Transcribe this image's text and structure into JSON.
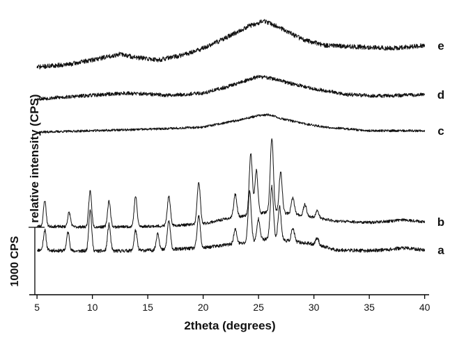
{
  "chart_data": {
    "type": "line",
    "xlabel": "2theta (degrees)",
    "ylabel": "relative intensity (CPS)",
    "scale_bar_label": "1000 CPS",
    "xlim": [
      4.3,
      40.4
    ],
    "xticks": [
      5,
      10,
      15,
      20,
      25,
      30,
      35,
      40
    ],
    "x_tick_labels": [
      "5",
      "10",
      "15",
      "20",
      "25",
      "30",
      "35",
      "40"
    ],
    "grid": false,
    "colors": {
      "line": "#111111",
      "axis": "#000000"
    },
    "series": [
      {
        "name": "a",
        "style": "crystalline",
        "offset": 0,
        "baseline": [
          [
            5,
            0.45
          ],
          [
            8,
            0.38
          ],
          [
            12,
            0.38
          ],
          [
            16,
            0.45
          ],
          [
            20,
            0.6
          ],
          [
            22,
            0.8
          ],
          [
            24,
            0.95
          ],
          [
            26,
            1.25
          ],
          [
            28,
            1.05
          ],
          [
            30,
            0.85
          ],
          [
            32,
            0.45
          ],
          [
            35,
            0.4
          ],
          [
            37,
            0.5
          ],
          [
            38,
            0.6
          ],
          [
            40,
            0.45
          ]
        ],
        "peaks": [
          [
            5.7,
            1.4,
            0.12
          ],
          [
            7.8,
            1.3,
            0.13
          ],
          [
            9.8,
            2.9,
            0.13
          ],
          [
            11.5,
            1.85,
            0.13
          ],
          [
            13.9,
            1.4,
            0.13
          ],
          [
            15.9,
            1.2,
            0.13
          ],
          [
            16.9,
            2.0,
            0.14
          ],
          [
            19.6,
            2.2,
            0.14
          ],
          [
            22.9,
            1.0,
            0.14
          ],
          [
            24.2,
            3.5,
            0.14
          ],
          [
            25.0,
            1.5,
            0.14
          ],
          [
            26.2,
            3.6,
            0.14
          ],
          [
            26.9,
            2.3,
            0.14
          ],
          [
            28.1,
            0.9,
            0.14
          ],
          [
            30.3,
            0.5,
            0.14
          ]
        ],
        "noise": 0.12,
        "seed": 11
      },
      {
        "name": "b",
        "style": "crystalline",
        "offset": 2.0,
        "baseline": [
          [
            5,
            0.1
          ],
          [
            8,
            0.05
          ],
          [
            12,
            0.05
          ],
          [
            16,
            0.1
          ],
          [
            20,
            0.25
          ],
          [
            22,
            0.6
          ],
          [
            24,
            0.85
          ],
          [
            26,
            1.1
          ],
          [
            28,
            0.95
          ],
          [
            30,
            0.7
          ],
          [
            32,
            0.45
          ],
          [
            35,
            0.35
          ],
          [
            37,
            0.45
          ],
          [
            38,
            0.55
          ],
          [
            40,
            0.4
          ]
        ],
        "peaks": [
          [
            5.7,
            1.8,
            0.12
          ],
          [
            7.9,
            1.0,
            0.13
          ],
          [
            9.8,
            2.5,
            0.13
          ],
          [
            11.5,
            1.8,
            0.13
          ],
          [
            13.9,
            2.1,
            0.13
          ],
          [
            16.9,
            2.0,
            0.14
          ],
          [
            19.6,
            2.9,
            0.14
          ],
          [
            22.9,
            1.6,
            0.14
          ],
          [
            24.3,
            4.2,
            0.14
          ],
          [
            24.8,
            3.0,
            0.14
          ],
          [
            26.2,
            5.1,
            0.14
          ],
          [
            27.0,
            2.8,
            0.14
          ],
          [
            28.1,
            1.1,
            0.14
          ],
          [
            29.2,
            0.8,
            0.14
          ],
          [
            30.3,
            0.5,
            0.14
          ]
        ],
        "noise": 0.1,
        "seed": 23
      },
      {
        "name": "c",
        "style": "amorphous",
        "offset": 8.6,
        "baseline": [
          [
            5,
            0.0
          ],
          [
            10,
            0.1
          ],
          [
            15,
            0.2
          ],
          [
            20,
            0.35
          ],
          [
            23,
            0.8
          ],
          [
            25,
            1.15
          ],
          [
            26,
            1.2
          ],
          [
            27,
            0.95
          ],
          [
            29,
            0.6
          ],
          [
            31,
            0.35
          ],
          [
            35,
            0.1
          ],
          [
            40,
            0.1
          ]
        ],
        "noise": 0.08,
        "seed": 37
      },
      {
        "name": "d",
        "style": "amorphous",
        "offset": 10.7,
        "baseline": [
          [
            5,
            0.2
          ],
          [
            10,
            0.45
          ],
          [
            13,
            0.6
          ],
          [
            17,
            0.45
          ],
          [
            20,
            0.6
          ],
          [
            22,
            1.0
          ],
          [
            24,
            1.5
          ],
          [
            25,
            1.75
          ],
          [
            26,
            1.65
          ],
          [
            28,
            1.25
          ],
          [
            30,
            0.9
          ],
          [
            33,
            0.5
          ],
          [
            36,
            0.4
          ],
          [
            40,
            0.5
          ]
        ],
        "noise": 0.13,
        "seed": 53
      },
      {
        "name": "e",
        "style": "amorphous",
        "offset": 12.6,
        "baseline": [
          [
            5,
            0.5
          ],
          [
            8,
            0.7
          ],
          [
            10,
            1.0
          ],
          [
            12.5,
            1.4
          ],
          [
            14,
            1.15
          ],
          [
            16,
            1.0
          ],
          [
            18,
            1.3
          ],
          [
            20,
            1.8
          ],
          [
            22,
            2.5
          ],
          [
            24,
            3.3
          ],
          [
            25.5,
            3.7
          ],
          [
            27,
            3.2
          ],
          [
            29,
            2.4
          ],
          [
            31,
            2.0
          ],
          [
            34,
            1.9
          ],
          [
            37,
            1.8
          ],
          [
            40,
            2.0
          ]
        ],
        "noise": 0.16,
        "seed": 71
      }
    ]
  }
}
